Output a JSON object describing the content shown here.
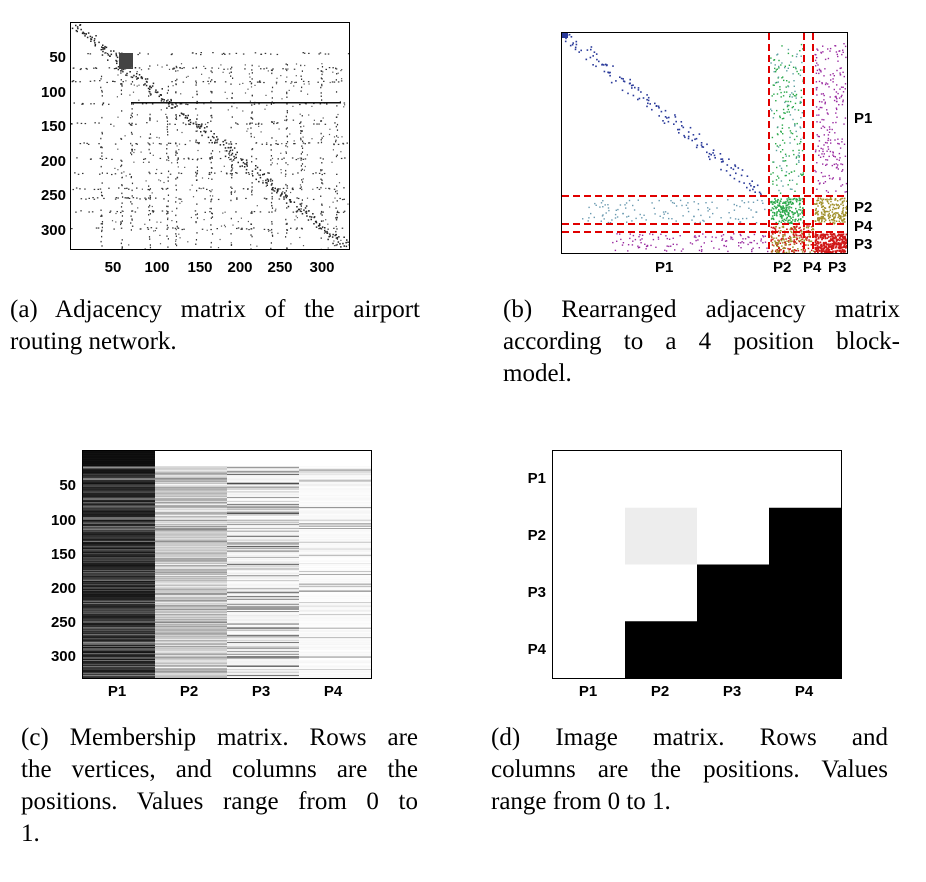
{
  "panel_a": {
    "y_ticks": [
      "50",
      "100",
      "150",
      "200",
      "250",
      "300"
    ],
    "x_ticks": [
      "50",
      "100",
      "150",
      "200",
      "250",
      "300"
    ],
    "caption_1": "(a) Adjacency matrix of the airport",
    "caption_2": "routing network."
  },
  "panel_b": {
    "right_labels": [
      "P1",
      "P2",
      "P4",
      "P3"
    ],
    "bottom_labels": [
      "P1",
      "P2",
      "P4",
      "P3"
    ],
    "caption_1": "(b) Rearranged adjacency matrix",
    "caption_2": "according to a 4 position block-",
    "caption_3": "model.",
    "colors": {
      "p1": "#2a3a9a",
      "p2": "#2aa84a",
      "p3": "#d01818",
      "p4": "#a0902a",
      "mixed": "#9a2aa0",
      "dash": "#e00000"
    }
  },
  "panel_c": {
    "y_ticks": [
      "50",
      "100",
      "150",
      "200",
      "250",
      "300"
    ],
    "x_ticks": [
      "P1",
      "P2",
      "P3",
      "P4"
    ],
    "caption_1": "(c) Membership matrix. Rows are",
    "caption_2": "the vertices, and columns are the",
    "caption_3": "positions. Values range from 0 to",
    "caption_4": "1."
  },
  "panel_d": {
    "y_ticks": [
      "P1",
      "P2",
      "P3",
      "P4"
    ],
    "x_ticks": [
      "P1",
      "P2",
      "P3",
      "P4"
    ],
    "caption_1": "(d) Image matrix. Rows and",
    "caption_2": "columns are the positions. Values",
    "caption_3": "range from 0 to 1."
  },
  "chart_data": [
    {
      "type": "heatmap",
      "name": "image_matrix",
      "rows": [
        "P1",
        "P2",
        "P3",
        "P4"
      ],
      "columns": [
        "P1",
        "P2",
        "P3",
        "P4"
      ],
      "values": [
        [
          0,
          0,
          0,
          0
        ],
        [
          0,
          0.07,
          0,
          1
        ],
        [
          0,
          0,
          1,
          1
        ],
        [
          0,
          1,
          1,
          1
        ]
      ],
      "colormap": "gray_reversed",
      "range": [
        0,
        1
      ]
    }
  ]
}
